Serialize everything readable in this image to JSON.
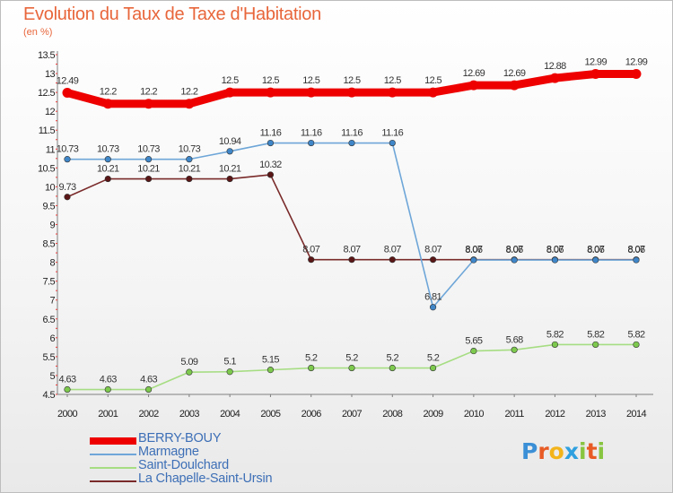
{
  "title": "Evolution du Taux de Taxe d'Habitation",
  "unit_label": "(en %)",
  "logo": {
    "text": "Proxiti",
    "letters": [
      {
        "ch": "P",
        "color": "#3b8fd6"
      },
      {
        "ch": "r",
        "color": "#e85b25"
      },
      {
        "ch": "o",
        "color": "#f3b41b"
      },
      {
        "ch": "x",
        "color": "#2fa0df"
      },
      {
        "ch": "i",
        "color": "#88c540"
      },
      {
        "ch": "t",
        "color": "#e85b25"
      },
      {
        "ch": "i",
        "color": "#88c540"
      }
    ]
  },
  "chart_data": {
    "type": "line",
    "title": "Evolution du Taux de Taxe d'Habitation",
    "subtitle": "(en %)",
    "x": [
      "2000",
      "2001",
      "2002",
      "2003",
      "2004",
      "2005",
      "2006",
      "2007",
      "2008",
      "2009",
      "2010",
      "2011",
      "2012",
      "2013",
      "2014"
    ],
    "ylim": [
      4.5,
      13.5
    ],
    "yticks": [
      "4.5",
      "5",
      "5.5",
      "6",
      "6.5",
      "7",
      "7.5",
      "8",
      "8.5",
      "9",
      "9.5",
      "10",
      "10.5",
      "11",
      "11.5",
      "12",
      "12.5",
      "13",
      "13.5"
    ],
    "grid": false,
    "legend_position": "bottom-left",
    "series": [
      {
        "name": "BERRY-BOUY",
        "color": "#ee0000",
        "thick": true,
        "values": [
          12.49,
          12.2,
          12.2,
          12.2,
          12.5,
          12.5,
          12.5,
          12.5,
          12.5,
          12.5,
          12.69,
          12.69,
          12.88,
          12.99,
          12.99
        ],
        "labels": [
          "12.49",
          "12.2",
          "12.2",
          "12.2",
          "12.5",
          "12.5",
          "12.5",
          "12.5",
          "12.5",
          "12.5",
          "12.69",
          "12.69",
          "12.88",
          "12.99",
          "12.99"
        ]
      },
      {
        "name": "Marmagne",
        "color": "#6ea6d8",
        "point_color": "#3f86c8",
        "values": [
          10.73,
          10.73,
          10.73,
          10.73,
          10.94,
          11.16,
          11.16,
          11.16,
          11.16,
          6.81,
          8.06,
          8.06,
          8.06,
          8.06,
          8.06
        ],
        "labels": [
          "10.73",
          "10.73",
          "10.73",
          "10.73",
          "10.94",
          "11.16",
          "11.16",
          "11.16",
          "11.16",
          "6.81",
          "8.06",
          "8.06",
          "8.06",
          "8.06",
          "8.06"
        ]
      },
      {
        "name": "Saint-Doulchard",
        "color": "#a6dd82",
        "point_color": "#7dc94e",
        "values": [
          4.63,
          4.63,
          4.63,
          5.09,
          5.1,
          5.15,
          5.2,
          5.2,
          5.2,
          5.2,
          5.65,
          5.68,
          5.82,
          5.82,
          5.82
        ],
        "labels": [
          "4.63",
          "4.63",
          "4.63",
          "5.09",
          "5.1",
          "5.15",
          "5.2",
          "5.2",
          "5.2",
          "5.2",
          "5.65",
          "5.68",
          "5.82",
          "5.82",
          "5.82"
        ]
      },
      {
        "name": "La Chapelle-Saint-Ursin",
        "color": "#7a2a2a",
        "point_color": "#5a1616",
        "values": [
          9.73,
          10.21,
          10.21,
          10.21,
          10.21,
          10.32,
          8.07,
          8.07,
          8.07,
          8.07,
          8.07,
          8.07,
          8.07,
          8.07,
          8.07
        ],
        "labels": [
          "9.73",
          "10.21",
          "10.21",
          "10.21",
          "10.21",
          "10.32",
          "8.07",
          "8.07",
          "8.07",
          "8.07",
          "8.07",
          "8.07",
          "8.07",
          "8.07",
          "8.07"
        ]
      }
    ]
  }
}
